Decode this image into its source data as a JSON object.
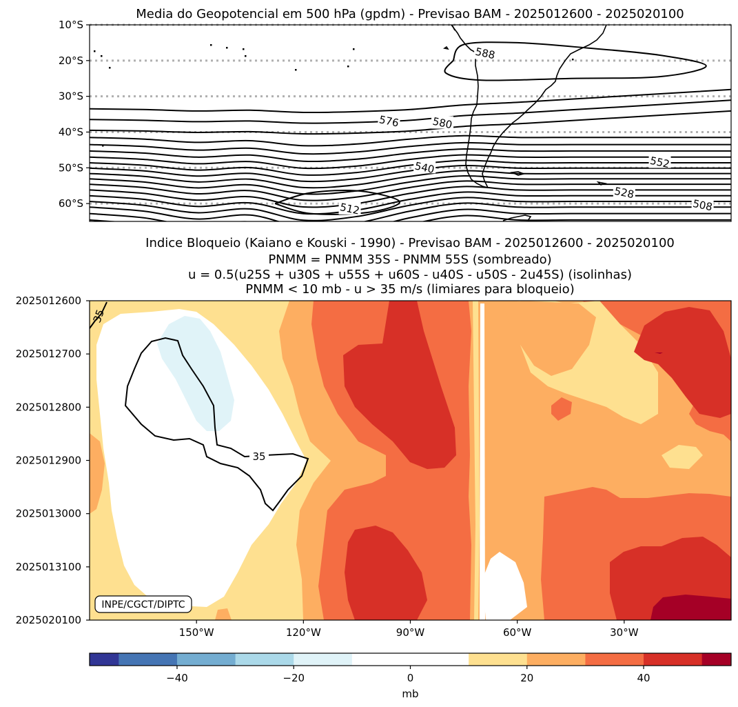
{
  "chart_data": [
    {
      "type": "contour",
      "title": "Media do Geopotencial em 500 hPa (gpdm) - Previsao BAM - 2025012600 - 2025020100",
      "y_ticks": [
        "10°S",
        "20°S",
        "30°S",
        "40°S",
        "50°S",
        "60°S"
      ],
      "y_tick_values": [
        -10,
        -20,
        -30,
        -40,
        -50,
        -60
      ],
      "ylim": [
        -65,
        -10
      ],
      "xlim": [
        -180,
        0
      ],
      "grid": "dotted at latitude ticks",
      "contour_interval": 4,
      "contour_range": [
        508,
        588
      ],
      "contour_labels": [
        {
          "text": "588",
          "lon": -69,
          "lat": -18.0
        },
        {
          "text": "576",
          "lon": -96,
          "lat": -37.0
        },
        {
          "text": "580",
          "lon": -81,
          "lat": -37.5
        },
        {
          "text": "540",
          "lon": -86,
          "lat": -50.0
        },
        {
          "text": "552",
          "lon": -20,
          "lat": -48.5
        },
        {
          "text": "528",
          "lon": -30,
          "lat": -57.0
        },
        {
          "text": "512",
          "lon": -107,
          "lat": -61.5
        },
        {
          "text": "508",
          "lon": -8,
          "lat": -60.5
        }
      ]
    },
    {
      "type": "filled-contour",
      "title_lines": [
        "Indice Bloqueio (Kaiano e Kouski - 1990) - Previsao BAM - 2025012600 - 2025020100",
        "PNMM = PNMM 35S - PNMM 55S (sombreado)",
        "u = 0.5(u25S + u30S + u55S + u60S - u40S - u50S - 2u45S) (isolinhas)",
        "PNMM < 10 mb - u > 35 m/s (limiares para bloqueio)"
      ],
      "x_ticks": [
        "150°W",
        "120°W",
        "90°W",
        "60°W",
        "30°W"
      ],
      "x_tick_values": [
        -150,
        -120,
        -90,
        -60,
        -30
      ],
      "xlim": [
        -180,
        0
      ],
      "y_ticks": [
        "2025012600",
        "2025012700",
        "2025012800",
        "2025012900",
        "2025013000",
        "2025013100",
        "2025020100"
      ],
      "y_tick_values": [
        0,
        1,
        2,
        3,
        4,
        5,
        6
      ],
      "ylim": [
        6,
        0
      ],
      "isoline_value": 35,
      "isoline_labels": [
        "35",
        "35"
      ],
      "colorbar": {
        "label": "mb",
        "levels": [
          -55,
          -50,
          -40,
          -30,
          -20,
          -10,
          10,
          20,
          30,
          40,
          50,
          55
        ],
        "colors": [
          "#313695",
          "#4575b4",
          "#74add1",
          "#abd9e9",
          "#e0f3f8",
          "#ffffff",
          "#fee090",
          "#fdae61",
          "#f46d43",
          "#d73027",
          "#a50026"
        ],
        "ticks": [
          "−40",
          "−20",
          "0",
          "20",
          "40"
        ],
        "tick_values": [
          -40,
          -20,
          0,
          20,
          40
        ],
        "range": [
          -55,
          55
        ]
      },
      "credit": "INPE/CGCT/DIPTC"
    }
  ],
  "colors": {
    "c_lightblue": "#e0f3f8",
    "c_white": "#ffffff",
    "c_yellow": "#fee090",
    "c_orange": "#fdae61",
    "c_dorange": "#f46d43",
    "c_red": "#d73027",
    "c_dred": "#a50026",
    "grid": "#b0b0b0"
  }
}
